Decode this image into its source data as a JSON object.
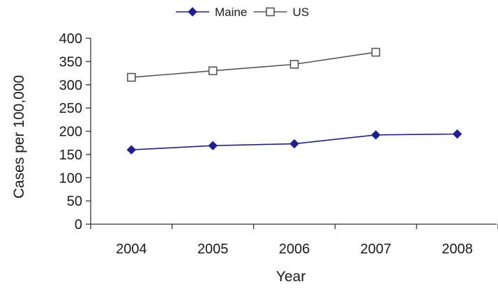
{
  "chart_data": {
    "type": "line",
    "title": "",
    "xlabel": "Year",
    "ylabel": "Cases per 100,000",
    "categories": [
      "2004",
      "2005",
      "2006",
      "2007",
      "2008"
    ],
    "ylim": [
      0,
      400
    ],
    "yticks": [
      0,
      50,
      100,
      150,
      200,
      250,
      300,
      350,
      400
    ],
    "grid": false,
    "legend": "top-center",
    "series": [
      {
        "name": "Maine",
        "values": [
          160,
          169,
          173,
          192,
          194
        ],
        "color": "#1f1f8f",
        "marker": "filled-diamond"
      },
      {
        "name": "US",
        "values": [
          316,
          330,
          344,
          370,
          null
        ],
        "color": "#555555",
        "marker": "open-square"
      }
    ]
  }
}
